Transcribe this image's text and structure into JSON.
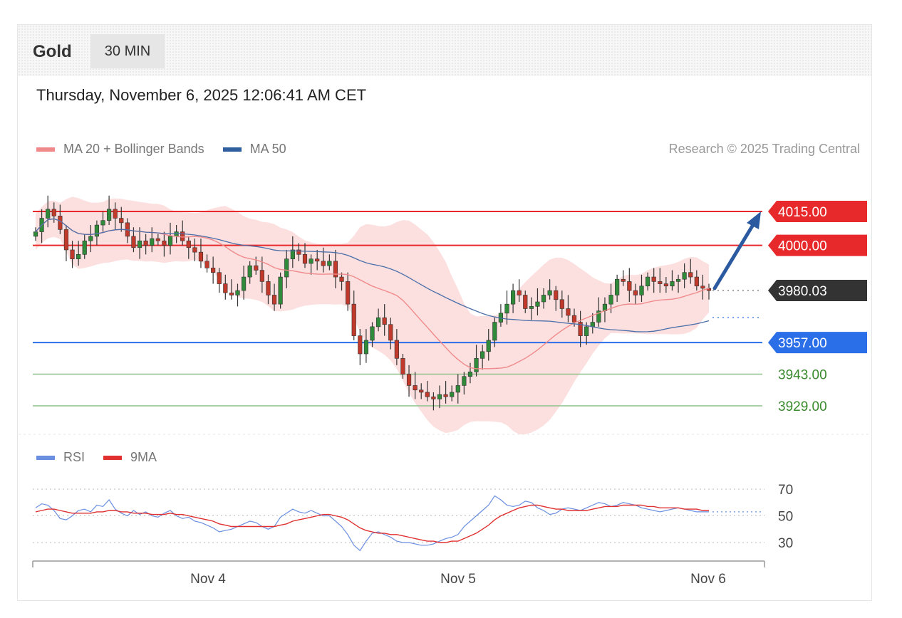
{
  "header": {
    "title": "Gold",
    "timeframe": "30 MIN"
  },
  "date": "Thursday, November 6, 2025 12:06:41 AM CET",
  "legend": [
    {
      "label": "MA 20 + Bollinger Bands",
      "color": "#f08a8a"
    },
    {
      "label": "MA 50",
      "color": "#2f5f9e"
    }
  ],
  "copyright": "Research © 2025 Trading Central",
  "rsi_legend": [
    {
      "label": "RSI",
      "color": "#6a8ee0"
    },
    {
      "label": "9MA",
      "color": "#e03030"
    }
  ],
  "colors": {
    "resistance": "#e8292b",
    "pivot": "#2a6fe8",
    "support": "#8fc08a",
    "last": "#333333",
    "arrow": "#2c5aa0"
  },
  "chart_data": [
    {
      "type": "line",
      "title": "Gold",
      "x_ticks": [
        "Nov 4",
        "Nov 5",
        "Nov 6"
      ],
      "y_range": [
        3918,
        4030
      ],
      "levels": [
        {
          "value": 4015.0,
          "label": "4015.00",
          "kind": "resistance"
        },
        {
          "value": 4000.0,
          "label": "4000.00",
          "kind": "resistance"
        },
        {
          "value": 3980.03,
          "label": "3980.03",
          "kind": "last"
        },
        {
          "value": 3957.0,
          "label": "3957.00",
          "kind": "pivot"
        },
        {
          "value": 3943.0,
          "label": "3943.00",
          "kind": "support"
        },
        {
          "value": 3929.0,
          "label": "3929.00",
          "kind": "support"
        }
      ],
      "close": [
        4006,
        4012,
        4016,
        4013,
        4007,
        3998,
        3994,
        3996,
        4002,
        4004,
        4009,
        4011,
        4016,
        4012,
        4010,
        4004,
        3999,
        4002,
        4000,
        4003,
        4002,
        4000,
        4004,
        4006,
        4002,
        3999,
        3997,
        3993,
        3990,
        3988,
        3983,
        3979,
        3978,
        3980,
        3986,
        3991,
        3989,
        3984,
        3978,
        3974,
        3986,
        3994,
        3998,
        3996,
        3992,
        3994,
        3993,
        3991,
        3993,
        3986,
        3984,
        3974,
        3960,
        3952,
        3958,
        3964,
        3968,
        3965,
        3958,
        3950,
        3943,
        3938,
        3936,
        3935,
        3933,
        3932,
        3934,
        3933,
        3935,
        3938,
        3942,
        3944,
        3950,
        3953,
        3958,
        3966,
        3970,
        3974,
        3980,
        3978,
        3972,
        3973,
        3975,
        3978,
        3980,
        3976,
        3972,
        3969,
        3966,
        3960,
        3964,
        3966,
        3971,
        3974,
        3978,
        3985,
        3984,
        3980,
        3978,
        3982,
        3986,
        3984,
        3983,
        3982,
        3984,
        3985,
        3988,
        3986,
        3982,
        3981,
        3980
      ]
    },
    {
      "type": "line",
      "title": "RSI",
      "y_ticks": [
        70,
        50,
        30
      ],
      "y_range": [
        14,
        78
      ],
      "series": [
        {
          "name": "RSI",
          "values": [
            56,
            59,
            58,
            54,
            48,
            47,
            50,
            54,
            55,
            53,
            58,
            57,
            62,
            55,
            52,
            50,
            54,
            51,
            53,
            50,
            49,
            52,
            54,
            50,
            48,
            49,
            46,
            45,
            43,
            41,
            38,
            39,
            40,
            42,
            44,
            46,
            45,
            42,
            40,
            42,
            49,
            52,
            55,
            53,
            52,
            54,
            52,
            50,
            50,
            46,
            42,
            36,
            28,
            24,
            31,
            37,
            38,
            36,
            34,
            31,
            30,
            30,
            29,
            28,
            28,
            29,
            31,
            33,
            34,
            36,
            42,
            46,
            50,
            54,
            58,
            65,
            62,
            58,
            57,
            58,
            61,
            60,
            56,
            54,
            51,
            52,
            55,
            56,
            55,
            54,
            56,
            58,
            60,
            59,
            57,
            58,
            60,
            59,
            58,
            56,
            55,
            54,
            53,
            54,
            55,
            56,
            55,
            54,
            53,
            53,
            53
          ]
        },
        {
          "name": "9MA",
          "values": [
            53,
            54,
            55,
            55,
            54,
            53,
            52,
            52,
            52,
            52,
            53,
            53,
            54,
            54,
            53,
            53,
            52,
            52,
            52,
            51,
            51,
            51,
            52,
            51,
            51,
            50,
            49,
            48,
            47,
            46,
            44,
            43,
            42,
            42,
            42,
            42,
            42,
            42,
            42,
            42,
            43,
            44,
            46,
            47,
            48,
            49,
            50,
            51,
            51,
            50,
            49,
            47,
            44,
            41,
            39,
            38,
            37,
            37,
            36,
            36,
            35,
            34,
            33,
            32,
            31,
            31,
            30,
            30,
            31,
            31,
            33,
            35,
            37,
            40,
            43,
            47,
            50,
            52,
            54,
            56,
            57,
            58,
            58,
            57,
            56,
            55,
            55,
            54,
            54,
            54,
            54,
            55,
            56,
            57,
            57,
            57,
            58,
            58,
            58,
            58,
            57,
            57,
            56,
            56,
            56,
            56,
            55,
            55,
            55,
            54,
            54
          ]
        }
      ]
    }
  ]
}
